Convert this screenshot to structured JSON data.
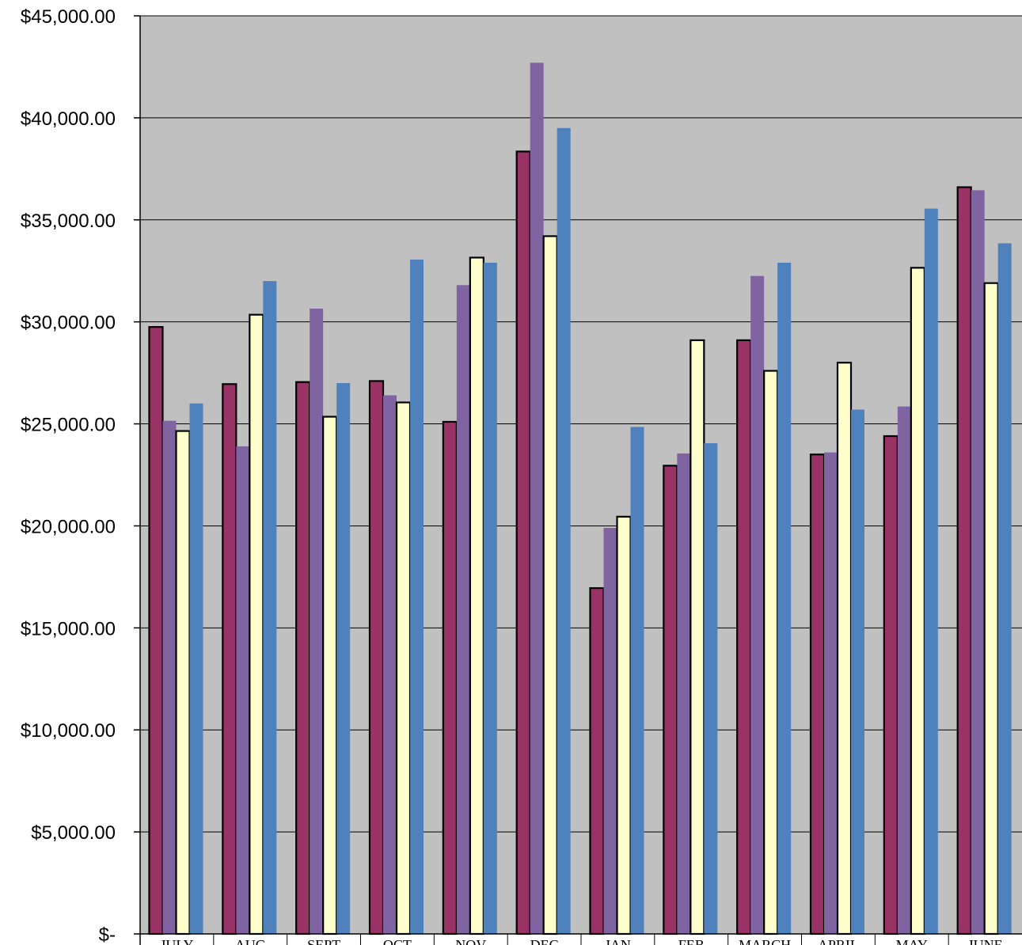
{
  "chart_data": {
    "type": "bar",
    "title": "",
    "xlabel": "",
    "ylabel": "",
    "ylim": [
      0,
      45000
    ],
    "ytick_values": [
      0,
      5000,
      10000,
      15000,
      20000,
      25000,
      30000,
      35000,
      40000,
      45000
    ],
    "ytick_labels": [
      "$-",
      "$5,000.00",
      "$10,000.00",
      "$15,000.00",
      "$20,000.00",
      "$25,000.00",
      "$30,000.00",
      "$35,000.00",
      "$40,000.00",
      "$45,000.00"
    ],
    "grid": true,
    "legend": "none",
    "plot_background": "#C0C0C0",
    "categories": [
      "JULY",
      "AUG",
      "SEPT",
      "OCT",
      "NOV",
      "DEC",
      "JAN",
      "FEB",
      "MARCH",
      "APRIL",
      "MAY",
      "JUNE"
    ],
    "series": [
      {
        "color": "#993366",
        "outlined": true,
        "values": [
          29750,
          26950,
          27050,
          27100,
          25100,
          38350,
          16950,
          22950,
          29100,
          23500,
          24400,
          36600
        ]
      },
      {
        "color": "#8064A2",
        "outlined": false,
        "values": [
          25150,
          23900,
          30650,
          26400,
          31800,
          42700,
          19900,
          23550,
          32250,
          23600,
          25850,
          36450
        ]
      },
      {
        "color": "#FFFFCC",
        "outlined": true,
        "values": [
          24650,
          30350,
          25350,
          26050,
          33150,
          34200,
          20450,
          29100,
          27600,
          28000,
          32650,
          31900
        ]
      },
      {
        "color": "#4F81BD",
        "outlined": false,
        "values": [
          26000,
          32000,
          27000,
          33050,
          32900,
          39500,
          24850,
          24050,
          32900,
          25700,
          35550,
          33850
        ]
      }
    ]
  }
}
